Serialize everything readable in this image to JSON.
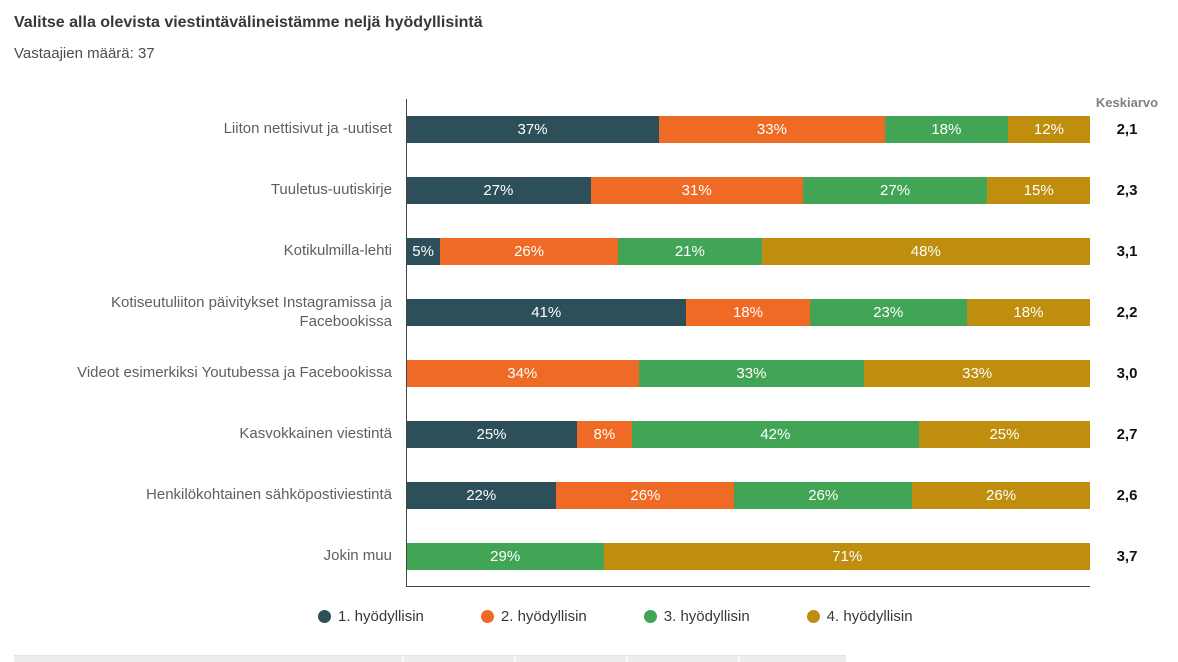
{
  "header": {
    "title": "Valitse alla olevista viestintävälineistämme neljä hyödyllisintä",
    "respondents": "Vastaajien määrä: 37"
  },
  "chart": {
    "avg_header": "Keskiarvo",
    "series_colors": [
      "#2c4f5a",
      "#ef6b25",
      "#41a555",
      "#bf8e0e"
    ],
    "rows": [
      {
        "label": "Liiton nettisivut ja -uutiset",
        "avg": "2,1",
        "segments": [
          {
            "series": 0,
            "pct": 37,
            "label": "37%"
          },
          {
            "series": 1,
            "pct": 33,
            "label": "33%"
          },
          {
            "series": 2,
            "pct": 18,
            "label": "18%"
          },
          {
            "series": 3,
            "pct": 12,
            "label": "12%"
          }
        ]
      },
      {
        "label": "Tuuletus-uutiskirje",
        "avg": "2,3",
        "segments": [
          {
            "series": 0,
            "pct": 27,
            "label": "27%"
          },
          {
            "series": 1,
            "pct": 31,
            "label": "31%"
          },
          {
            "series": 2,
            "pct": 27,
            "label": "27%"
          },
          {
            "series": 3,
            "pct": 15,
            "label": "15%"
          }
        ]
      },
      {
        "label": "Kotikulmilla-lehti",
        "avg": "3,1",
        "segments": [
          {
            "series": 0,
            "pct": 5,
            "label": "5%"
          },
          {
            "series": 1,
            "pct": 26,
            "label": "26%"
          },
          {
            "series": 2,
            "pct": 21,
            "label": "21%"
          },
          {
            "series": 3,
            "pct": 48,
            "label": "48%"
          }
        ]
      },
      {
        "label": "Kotiseutuliiton päivitykset Instagramissa ja Facebookissa",
        "avg": "2,2",
        "segments": [
          {
            "series": 0,
            "pct": 41,
            "label": "41%"
          },
          {
            "series": 1,
            "pct": 18,
            "label": "18%"
          },
          {
            "series": 2,
            "pct": 23,
            "label": "23%"
          },
          {
            "series": 3,
            "pct": 18,
            "label": "18%"
          }
        ]
      },
      {
        "label": "Videot esimerkiksi Youtubessa ja Facebookissa",
        "avg": "3,0",
        "segments": [
          {
            "series": 1,
            "pct": 34,
            "label": "34%"
          },
          {
            "series": 2,
            "pct": 33,
            "label": "33%"
          },
          {
            "series": 3,
            "pct": 33,
            "label": "33%"
          }
        ]
      },
      {
        "label": "Kasvokkainen viestintä",
        "avg": "2,7",
        "segments": [
          {
            "series": 0,
            "pct": 25,
            "label": "25%"
          },
          {
            "series": 1,
            "pct": 8,
            "label": "8%"
          },
          {
            "series": 2,
            "pct": 42,
            "label": "42%"
          },
          {
            "series": 3,
            "pct": 25,
            "label": "25%"
          }
        ]
      },
      {
        "label": "Henkilökohtainen sähköpostiviestintä",
        "avg": "2,6",
        "segments": [
          {
            "series": 0,
            "pct": 22,
            "label": "22%"
          },
          {
            "series": 1,
            "pct": 26,
            "label": "26%"
          },
          {
            "series": 2,
            "pct": 26,
            "label": "26%"
          },
          {
            "series": 3,
            "pct": 26,
            "label": "26%"
          }
        ]
      },
      {
        "label": "Jokin muu",
        "avg": "3,7",
        "segments": [
          {
            "series": 2,
            "pct": 29,
            "label": "29%"
          },
          {
            "series": 3,
            "pct": 71,
            "label": "71%"
          }
        ]
      }
    ]
  },
  "legend": [
    {
      "label": "1. hyödyllisin",
      "color": "#2c4f5a"
    },
    {
      "label": "2. hyödyllisin",
      "color": "#ef6b25"
    },
    {
      "label": "3. hyödyllisin",
      "color": "#41a555"
    },
    {
      "label": "4. hyödyllisin",
      "color": "#bf8e0e"
    }
  ],
  "chart_data": {
    "type": "bar",
    "orientation": "horizontal_stacked",
    "title": "Valitse alla olevista viestintävälineistämme neljä hyödyllisintä",
    "respondents": 37,
    "categories": [
      "Liiton nettisivut ja -uutiset",
      "Tuuletus-uutiskirje",
      "Kotikulmilla-lehti",
      "Kotiseutuliiton päivitykset Instagramissa ja Facebookissa",
      "Videot esimerkiksi Youtubessa ja Facebookissa",
      "Kasvokkainen viestintä",
      "Henkilökohtainen sähköpostiviestintä",
      "Jokin muu"
    ],
    "series": [
      {
        "name": "1. hyödyllisin",
        "color": "#2c4f5a",
        "values": [
          37,
          27,
          5,
          41,
          null,
          25,
          22,
          null
        ]
      },
      {
        "name": "2. hyödyllisin",
        "color": "#ef6b25",
        "values": [
          33,
          31,
          26,
          18,
          34,
          8,
          26,
          null
        ]
      },
      {
        "name": "3. hyödyllisin",
        "color": "#41a555",
        "values": [
          18,
          27,
          21,
          23,
          33,
          42,
          26,
          29
        ]
      },
      {
        "name": "4. hyödyllisin",
        "color": "#bf8e0e",
        "values": [
          12,
          15,
          48,
          18,
          33,
          25,
          26,
          71
        ]
      }
    ],
    "average_label": "Keskiarvo",
    "averages": [
      2.1,
      2.3,
      3.1,
      2.2,
      3.0,
      2.7,
      2.6,
      3.7
    ],
    "xlim": [
      0,
      100
    ],
    "value_labels": "percent_inside_bars_white",
    "legend_position": "bottom",
    "grid": false
  }
}
